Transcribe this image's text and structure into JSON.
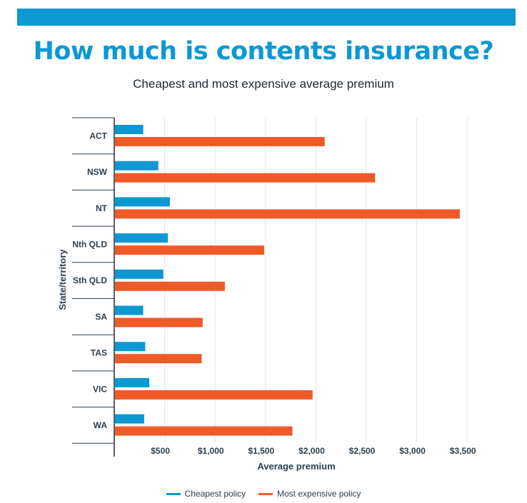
{
  "header": {
    "title": "How much is contents insurance?",
    "subtitle": "Cheapest and most expensive average premium"
  },
  "colors": {
    "accent": "#0b98d3",
    "cheapest": "#0b98d3",
    "expensive": "#f05a28"
  },
  "chart_data": {
    "type": "bar",
    "orientation": "horizontal",
    "categories": [
      "ACT",
      "NSW",
      "NT",
      "Nth QLD",
      "Sth QLD",
      "SA",
      "TAS",
      "VIC",
      "WA"
    ],
    "series": [
      {
        "name": "Cheapest policy",
        "values": [
          280,
          430,
          545,
          525,
          480,
          280,
          300,
          340,
          290
        ]
      },
      {
        "name": "Most expensive policy",
        "values": [
          2080,
          2580,
          3420,
          1480,
          1090,
          870,
          860,
          1960,
          1760
        ]
      }
    ],
    "xticks": [
      "$500",
      "$1,000",
      "$1,500",
      "$2,000",
      "$2,500",
      "$3,000",
      "$3,500"
    ],
    "xtick_values": [
      500,
      1000,
      1500,
      2000,
      2500,
      3000,
      3500
    ],
    "xlim": [
      0,
      3600
    ],
    "xlabel": "Average premium",
    "ylabel": "State/territory",
    "grid": true,
    "legend_position": "bottom"
  }
}
